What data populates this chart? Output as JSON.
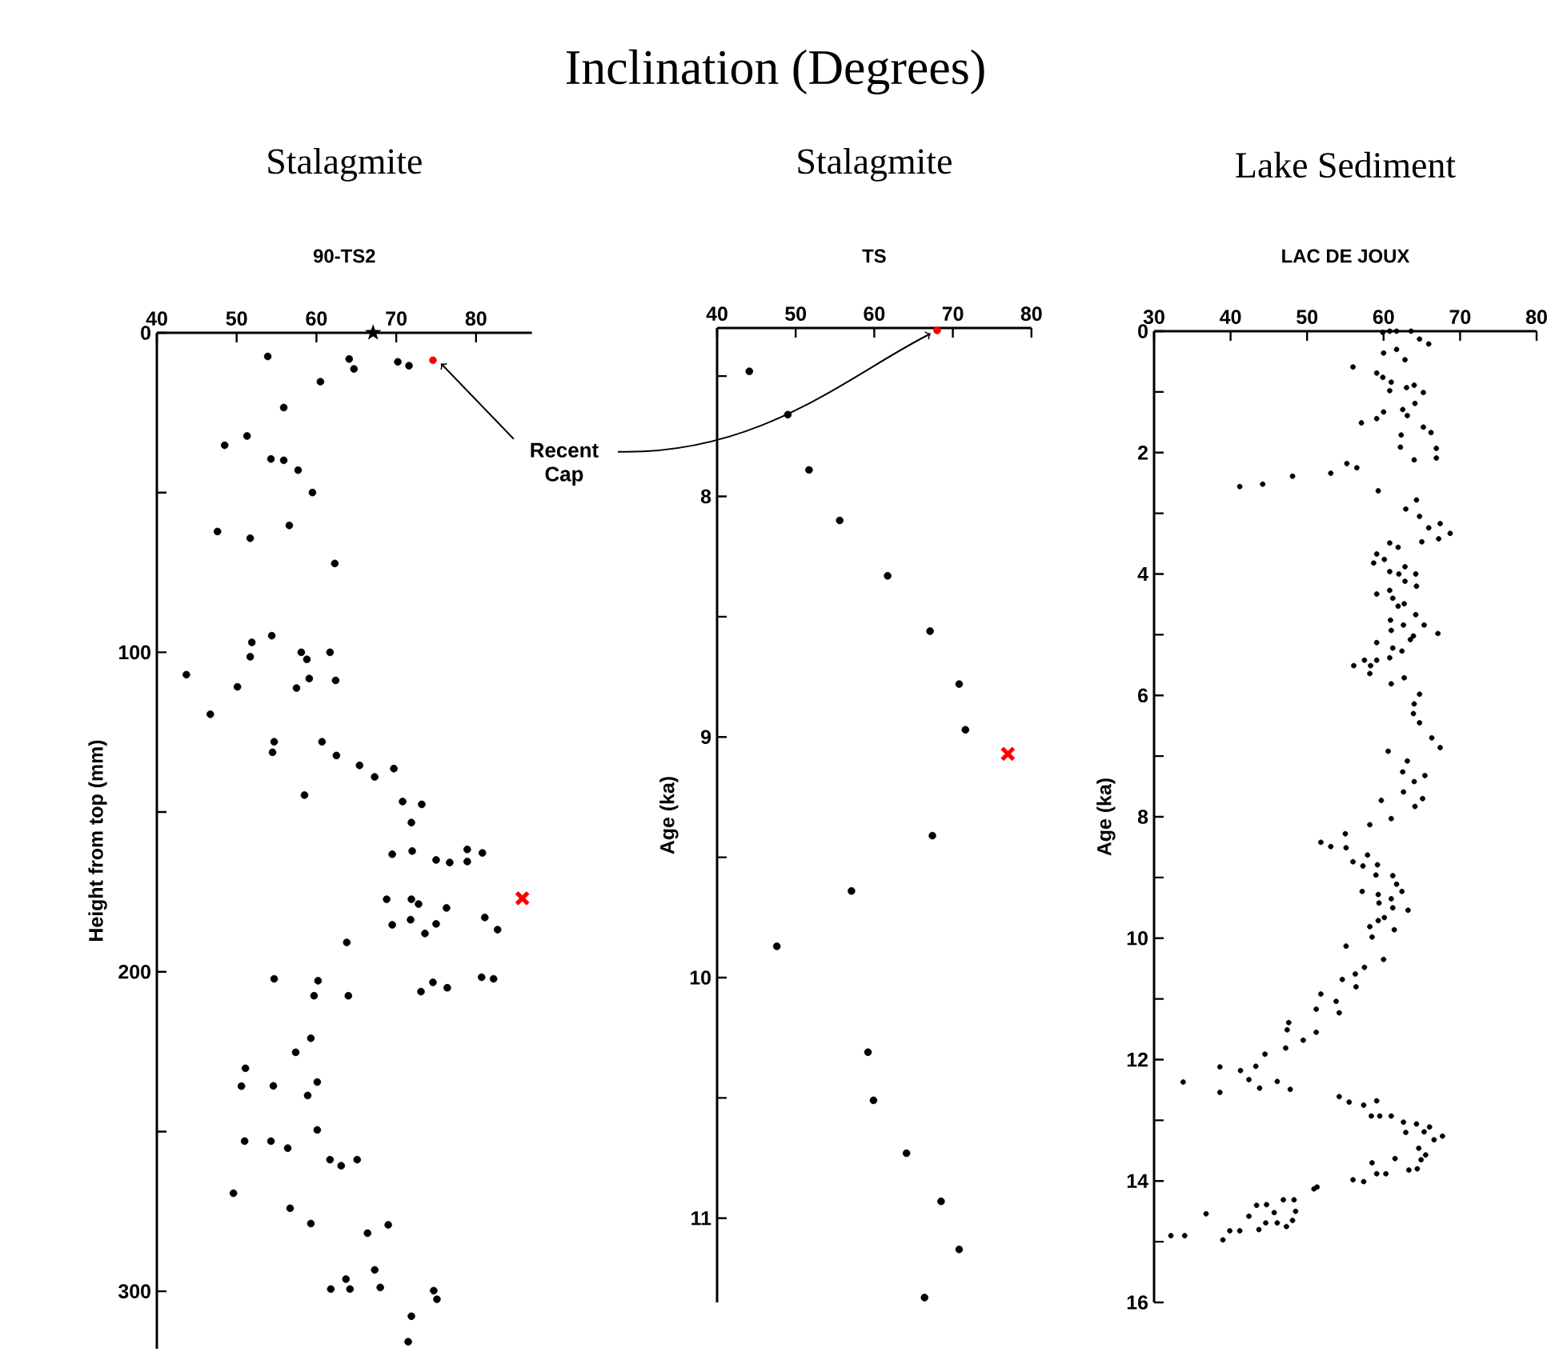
{
  "chart_data": [
    {
      "type": "scatter",
      "xlabel": "Inclination (Degrees)",
      "title": "Stalagmite",
      "subtitle": "90-TS2",
      "ylabel": "Height from top (mm)",
      "xlim": [
        40,
        87
      ],
      "ylim": [
        318,
        0
      ],
      "xticks": [
        40,
        50,
        60,
        70,
        80
      ],
      "yticks": [
        0,
        {
          "value": 50,
          "label": null
        },
        100,
        {
          "value": 150,
          "label": null
        },
        200,
        {
          "value": 250,
          "label": null
        },
        300
      ],
      "annotations": [
        {
          "text": "Recent Cap",
          "x": 74.6,
          "y": 8.6
        }
      ],
      "series": [
        {
          "color": "#000000",
          "marker": "circle",
          "x": [
            53.9,
            64.1,
            64.7,
            70.2,
            71.6,
            60.5,
            55.9,
            51.3,
            48.5,
            54.3,
            55.9,
            57.7,
            59.5,
            47.6,
            51.7,
            56.6,
            62.3,
            54.4,
            51.9,
            51.7,
            58.1,
            58.8,
            61.7,
            43.7,
            50.1,
            57.5,
            59.1,
            62.4,
            46.7,
            54.7,
            54.5,
            60.7,
            62.5,
            65.4,
            67.3,
            69.7,
            58.5,
            70.8,
            73.2,
            71.9,
            69.5,
            72.0,
            75.0,
            76.7,
            78.9,
            78.9,
            80.8,
            68.8,
            71.9,
            72.8,
            76.3,
            69.5,
            71.8,
            73.6,
            75.0,
            81.1,
            82.7,
            63.8,
            54.7,
            60.2,
            59.7,
            64.0,
            74.6,
            76.4,
            73.1,
            80.7,
            82.2,
            59.3,
            57.4,
            51.1,
            50.6,
            54.6,
            60.1,
            58.9,
            51.0,
            54.3,
            56.4,
            60.1,
            61.7,
            63.1,
            65.1,
            49.6,
            56.7,
            59.3,
            66.4,
            69.0,
            67.3,
            63.7,
            61.8,
            64.2,
            68.0,
            74.7,
            75.1,
            71.9,
            71.5
          ],
          "values": [
            7.4,
            8.2,
            11.3,
            9.1,
            10.3,
            15.3,
            23.4,
            32.3,
            35.2,
            39.5,
            39.9,
            43.0,
            50.0,
            62.2,
            64.3,
            60.3,
            72.2,
            94.8,
            96.9,
            101.4,
            100.0,
            102.2,
            100.0,
            107.0,
            110.8,
            111.2,
            108.2,
            108.8,
            119.4,
            128.0,
            131.3,
            128.0,
            132.3,
            135.4,
            139.0,
            136.4,
            144.7,
            146.7,
            147.6,
            153.3,
            163.2,
            162.2,
            165.0,
            165.8,
            161.7,
            165.5,
            162.8,
            177.3,
            177.3,
            178.8,
            180.0,
            185.3,
            183.7,
            188.0,
            185.0,
            183.0,
            186.8,
            190.8,
            202.2,
            202.8,
            207.5,
            207.5,
            203.3,
            205.0,
            206.2,
            201.7,
            202.2,
            220.8,
            225.2,
            230.2,
            235.8,
            235.7,
            234.5,
            238.7,
            253.0,
            253.0,
            255.2,
            249.5,
            258.8,
            260.7,
            258.8,
            269.3,
            274.0,
            278.8,
            281.8,
            279.2,
            293.3,
            296.2,
            299.3,
            299.3,
            298.8,
            299.8,
            302.5,
            307.8,
            315.8
          ]
        },
        {
          "color": "#ff0000",
          "marker": "circle",
          "x": [
            74.6
          ],
          "values": [
            8.6
          ]
        },
        {
          "color": "#ff0000",
          "marker": "cross",
          "x": [
            85.8
          ],
          "values": [
            177.0
          ]
        },
        {
          "color": "#000000",
          "marker": "star",
          "x": [
            67.1
          ],
          "values": [
            0
          ]
        }
      ]
    },
    {
      "type": "scatter",
      "title": "Stalagmite",
      "subtitle": "TS",
      "ylabel": "Age (ka)",
      "xlim": [
        40,
        80
      ],
      "ylim": [
        11.35,
        7.3
      ],
      "xticks": [
        40,
        50,
        60,
        70,
        80
      ],
      "yticks": [
        {
          "value": 7.5,
          "label": null
        },
        8,
        {
          "value": 8.5,
          "label": null
        },
        9,
        {
          "value": 9.5,
          "label": null
        },
        10,
        {
          "value": 10.5,
          "label": null
        },
        11
      ],
      "series": [
        {
          "color": "#000000",
          "marker": "circle",
          "x": [
            44.1,
            49.0,
            51.7,
            55.6,
            61.7,
            67.1,
            70.8,
            71.6,
            67.4,
            57.1,
            47.6,
            59.2,
            59.9,
            64.1,
            68.5,
            70.8,
            66.4
          ],
          "values": [
            7.48,
            7.66,
            7.89,
            8.1,
            8.33,
            8.56,
            8.78,
            8.97,
            9.41,
            9.64,
            9.87,
            10.31,
            10.51,
            10.73,
            10.93,
            11.13,
            11.33
          ]
        },
        {
          "color": "#ff0000",
          "marker": "circle",
          "x": [
            68.0
          ],
          "values": [
            7.31
          ]
        },
        {
          "color": "#ff0000",
          "marker": "cross",
          "x": [
            77.0
          ],
          "values": [
            9.07
          ]
        }
      ]
    },
    {
      "type": "scatter",
      "title": "Lake Sediment",
      "subtitle": "LAC DE JOUX",
      "ylabel": "Age (ka)",
      "xlim": [
        30,
        80
      ],
      "ylim": [
        16,
        0
      ],
      "xticks": [
        30,
        40,
        50,
        60,
        70,
        80
      ],
      "yticks": [
        0,
        {
          "value": 1,
          "label": null
        },
        2,
        {
          "value": 3,
          "label": null
        },
        4,
        {
          "value": 5,
          "label": null
        },
        6,
        {
          "value": 7,
          "label": null
        },
        8,
        {
          "value": 9,
          "label": null
        },
        10,
        {
          "value": 11,
          "label": null
        },
        12,
        {
          "value": 13,
          "label": null
        },
        14,
        {
          "value": 15,
          "label": null
        },
        16
      ],
      "series": [
        {
          "color": "#000000",
          "marker": "circle",
          "x": [
            59.9,
            60.8,
            61.7,
            63.6,
            64.7,
            65.9,
            60.0,
            61.7,
            62.8,
            56.0,
            59.1,
            59.9,
            61.0,
            60.8,
            63.0,
            64.0,
            65.2,
            64.1,
            62.5,
            63.1,
            60.0,
            59.1,
            57.1,
            65.2,
            66.2,
            62.3,
            62.2,
            66.9,
            66.9,
            64.0,
            55.2,
            56.5,
            53.1,
            48.1,
            44.2,
            41.2,
            59.3,
            64.3,
            62.9,
            64.7,
            65.9,
            67.4,
            68.7,
            67.2,
            65.0,
            60.8,
            61.9,
            59.1,
            60.1,
            58.7,
            62.8,
            60.8,
            62.0,
            64.2,
            62.8,
            64.3,
            60.8,
            59.1,
            61.2,
            61.9,
            62.7,
            64.2,
            60.9,
            62.6,
            65.3,
            67.1,
            61.0,
            63.9,
            63.5,
            59.1,
            61.2,
            62.4,
            60.8,
            57.5,
            59.1,
            58.3,
            56.1,
            58.2,
            62.7,
            61.0,
            64.7,
            64.0,
            63.9,
            64.7,
            66.3,
            67.4,
            60.6,
            63.1,
            62.5,
            64.0,
            65.4,
            62.6,
            65.1,
            64.1,
            59.7,
            58.2,
            61.0,
            55.0,
            51.8,
            53.1,
            55.1,
            57.9,
            56.0,
            57.3,
            59.2,
            59.0,
            61.2,
            61.7,
            62.4,
            57.2,
            59.3,
            61.0,
            59.4,
            61.2,
            63.2,
            60.1,
            59.3,
            58.2,
            61.4,
            58.5,
            55.1,
            60.0,
            57.5,
            56.3,
            54.6,
            56.4,
            51.8,
            53.8,
            51.2,
            54.2,
            47.6,
            47.4,
            51.2,
            49.5,
            47.2,
            44.5,
            43.3,
            38.6,
            41.3,
            42.4,
            43.8,
            46.1,
            47.8,
            33.8,
            38.6,
            54.2,
            55.5,
            57.4,
            59.1,
            58.4,
            59.5,
            61.0,
            62.6,
            64.3,
            62.9,
            65.3,
            66.0,
            66.6,
            67.7,
            64.6,
            65.5,
            64.9,
            61.5,
            58.5,
            64.4,
            63.3,
            60.3,
            59.1,
            56.0,
            57.4,
            50.9,
            51.3,
            48.3,
            46.9,
            36.8,
            43.4,
            44.7,
            45.7,
            48.5,
            42.4,
            44.6,
            46.1,
            47.3,
            48.1,
            43.7,
            41.2,
            39.9,
            39.0,
            34.0,
            32.2
          ],
          "values": [
            0.02,
            0.0,
            0.0,
            0.0,
            0.13,
            0.21,
            0.36,
            0.3,
            0.47,
            0.59,
            0.69,
            0.76,
            0.84,
            0.98,
            0.93,
            0.89,
            1.01,
            1.19,
            1.29,
            1.39,
            1.33,
            1.44,
            1.51,
            1.58,
            1.67,
            1.71,
            1.91,
            1.93,
            2.09,
            2.12,
            2.18,
            2.25,
            2.34,
            2.39,
            2.52,
            2.56,
            2.63,
            2.78,
            2.93,
            3.05,
            3.24,
            3.17,
            3.33,
            3.42,
            3.47,
            3.49,
            3.56,
            3.67,
            3.76,
            3.82,
            3.88,
            3.96,
            4.0,
            4.0,
            4.12,
            4.2,
            4.27,
            4.33,
            4.4,
            4.53,
            4.49,
            4.67,
            4.76,
            4.84,
            4.84,
            4.98,
            4.93,
            5.02,
            5.08,
            5.13,
            5.22,
            5.27,
            5.38,
            5.42,
            5.42,
            5.51,
            5.51,
            5.64,
            5.71,
            5.81,
            5.98,
            6.14,
            6.3,
            6.45,
            6.7,
            6.86,
            6.92,
            7.08,
            7.26,
            7.42,
            7.32,
            7.59,
            7.7,
            7.83,
            7.73,
            8.13,
            8.03,
            8.28,
            8.42,
            8.49,
            8.51,
            8.63,
            8.74,
            8.81,
            8.79,
            8.96,
            8.97,
            9.11,
            9.23,
            9.23,
            9.28,
            9.35,
            9.42,
            9.5,
            9.54,
            9.66,
            9.71,
            9.81,
            9.86,
            9.98,
            10.13,
            10.35,
            10.48,
            10.59,
            10.68,
            10.8,
            10.92,
            11.04,
            11.17,
            11.23,
            11.39,
            11.51,
            11.55,
            11.68,
            11.81,
            11.91,
            12.11,
            12.12,
            12.18,
            12.33,
            12.47,
            12.36,
            12.49,
            12.37,
            12.54,
            12.61,
            12.7,
            12.75,
            12.68,
            12.93,
            12.93,
            12.93,
            13.03,
            13.06,
            13.2,
            13.19,
            13.11,
            13.32,
            13.26,
            13.46,
            13.57,
            13.65,
            13.63,
            13.7,
            13.8,
            13.82,
            13.88,
            13.88,
            13.98,
            14.01,
            14.13,
            14.1,
            14.31,
            14.31,
            14.54,
            14.4,
            14.39,
            14.52,
            14.5,
            14.58,
            14.69,
            14.69,
            14.75,
            14.65,
            14.8,
            14.82,
            14.82,
            14.97,
            14.9,
            14.9
          ]
        }
      ]
    }
  ]
}
